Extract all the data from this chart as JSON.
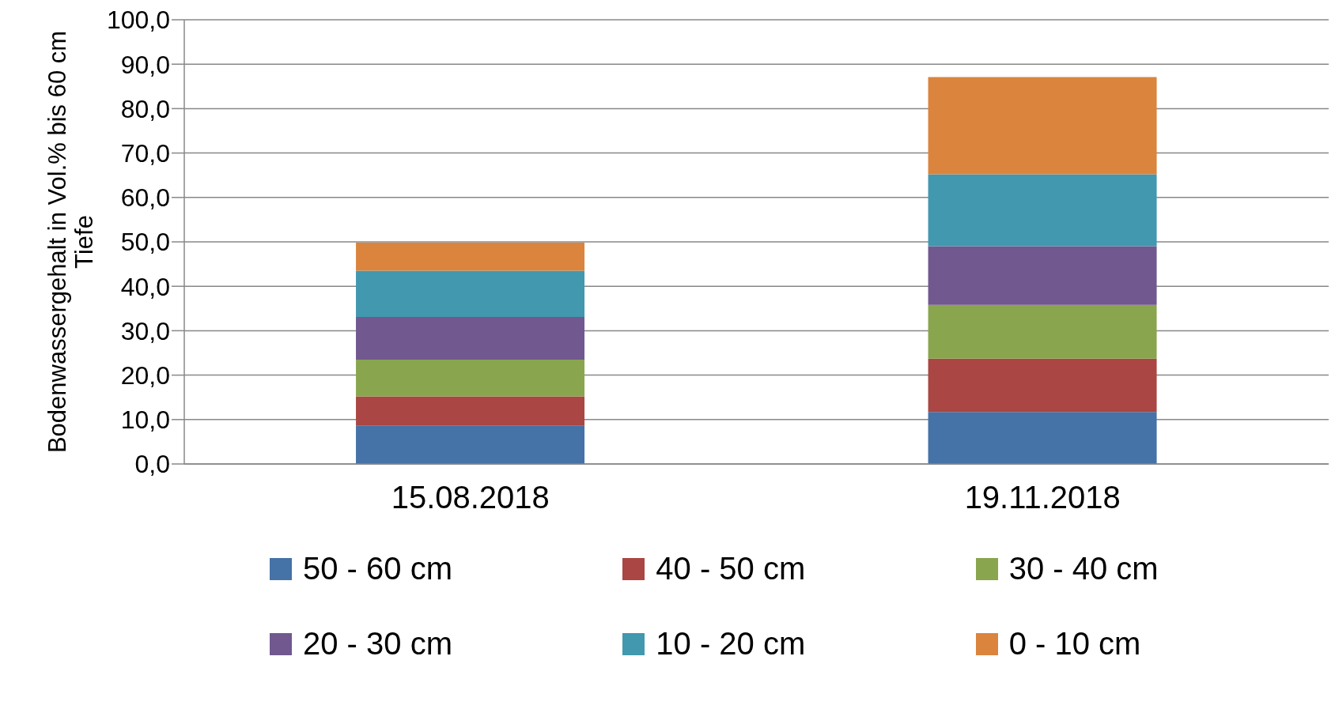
{
  "chart_data": {
    "type": "bar",
    "stacked": true,
    "ylabel": "Bodenwassergehalt in Vol.% bis 60 cm Tiefe",
    "categories": [
      "15.08.2018",
      "19.11.2018"
    ],
    "series": [
      {
        "name": "50 - 60 cm",
        "color": "#4572a7",
        "values": [
          8.6,
          11.7
        ]
      },
      {
        "name": "40 - 50 cm",
        "color": "#aa4643",
        "values": [
          6.6,
          12.0
        ]
      },
      {
        "name": "30 - 40 cm",
        "color": "#89a54e",
        "values": [
          8.3,
          12.1
        ]
      },
      {
        "name": "20 - 30 cm",
        "color": "#71588f",
        "values": [
          9.6,
          13.2
        ]
      },
      {
        "name": "10 - 20 cm",
        "color": "#4198af",
        "values": [
          10.4,
          16.2
        ]
      },
      {
        "name": "0 - 10 cm",
        "color": "#db843d",
        "values": [
          6.3,
          21.9
        ]
      }
    ],
    "ylim": [
      0,
      100
    ],
    "yticks": [
      {
        "value": 0,
        "label": "0,0"
      },
      {
        "value": 10,
        "label": "10,0"
      },
      {
        "value": 20,
        "label": "20,0"
      },
      {
        "value": 30,
        "label": "30,0"
      },
      {
        "value": 40,
        "label": "40,0"
      },
      {
        "value": 50,
        "label": "50,0"
      },
      {
        "value": 60,
        "label": "60,0"
      },
      {
        "value": 70,
        "label": "70,0"
      },
      {
        "value": 80,
        "label": "80,0"
      },
      {
        "value": 90,
        "label": "90,0"
      },
      {
        "value": 100,
        "label": "100,0"
      }
    ],
    "grid": "y",
    "legend": "bottom"
  }
}
